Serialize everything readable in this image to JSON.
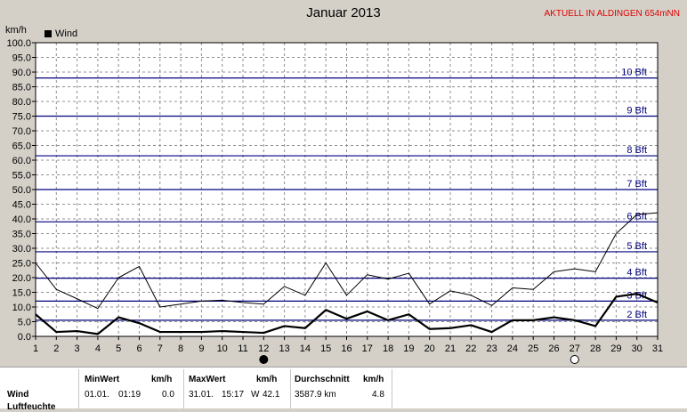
{
  "header": {
    "title": "Januar 2013",
    "station": "AKTUELL IN ALDINGEN 654mNN",
    "unit": "km/h",
    "legend": "Wind"
  },
  "colors": {
    "background": "#d4d0c8",
    "plot_bg": "#ffffff",
    "beaufort_line": "#000080",
    "series": "#000000",
    "station_text": "#e00000"
  },
  "chart_data": {
    "type": "line",
    "x": [
      1,
      2,
      3,
      4,
      5,
      6,
      7,
      8,
      9,
      10,
      11,
      12,
      13,
      14,
      15,
      16,
      17,
      18,
      19,
      20,
      21,
      22,
      23,
      24,
      25,
      26,
      27,
      28,
      29,
      30,
      31
    ],
    "xlim": [
      1,
      31
    ],
    "ylim": [
      0,
      100
    ],
    "yticks": [
      "0.0",
      "5.0",
      "10.0",
      "15.0",
      "20.0",
      "25.0",
      "30.0",
      "35.0",
      "40.0",
      "45.0",
      "50.0",
      "55.0",
      "60.0",
      "65.0",
      "70.0",
      "75.0",
      "80.0",
      "85.0",
      "90.0",
      "95.0",
      "100.0"
    ],
    "ylabel": "km/h",
    "grid": true,
    "legend_position": "top-left",
    "series": [
      {
        "name": "Wind",
        "role": "mean",
        "values": [
          7.5,
          1.5,
          1.8,
          0.8,
          6.5,
          4.5,
          1.5,
          1.5,
          1.5,
          1.8,
          1.5,
          1.2,
          3.5,
          2.8,
          9.0,
          6.0,
          8.5,
          5.5,
          7.5,
          2.5,
          2.8,
          3.8,
          1.5,
          5.5,
          5.5,
          6.5,
          5.5,
          3.5,
          13.5,
          14.5,
          11.5
        ]
      },
      {
        "name": "",
        "role": "gust",
        "values": [
          25.0,
          16.0,
          12.8,
          9.5,
          20.0,
          23.8,
          10.0,
          11.0,
          12.0,
          12.3,
          11.5,
          11.0,
          17.0,
          14.0,
          25.0,
          14.0,
          21.0,
          19.5,
          21.5,
          11.0,
          15.5,
          14.0,
          10.5,
          16.5,
          16.0,
          22.0,
          23.0,
          22.0,
          35.0,
          41.5,
          42.1
        ]
      }
    ],
    "beaufort": [
      {
        "label": "2 Bft",
        "value": 5.5
      },
      {
        "label": "3 Bft",
        "value": 12.0
      },
      {
        "label": "4 Bft",
        "value": 19.8
      },
      {
        "label": "5 Bft",
        "value": 28.8
      },
      {
        "label": "6 Bft",
        "value": 39.0
      },
      {
        "label": "7 Bft",
        "value": 50.0
      },
      {
        "label": "8 Bft",
        "value": 61.5
      },
      {
        "label": "9 Bft",
        "value": 75.0
      },
      {
        "label": "10 Bft",
        "value": 88.0
      }
    ],
    "moon_phases": [
      {
        "day": 12,
        "phase": "new"
      },
      {
        "day": 27,
        "phase": "full"
      }
    ]
  },
  "stats": {
    "row_label": "Wind",
    "next_row_label": "Luftfeuchte",
    "min": {
      "header": "MinWert",
      "unit": "km/h",
      "date": "01.01.",
      "time": "01:19",
      "value": "0.0"
    },
    "max": {
      "header": "MaxWert",
      "unit": "km/h",
      "date": "31.01.",
      "time": "15:17",
      "dir": "W",
      "value": "42.1"
    },
    "avg": {
      "header": "Durchschnitt",
      "unit": "km/h",
      "distance": "3587.9 km",
      "value": "4.8"
    }
  }
}
